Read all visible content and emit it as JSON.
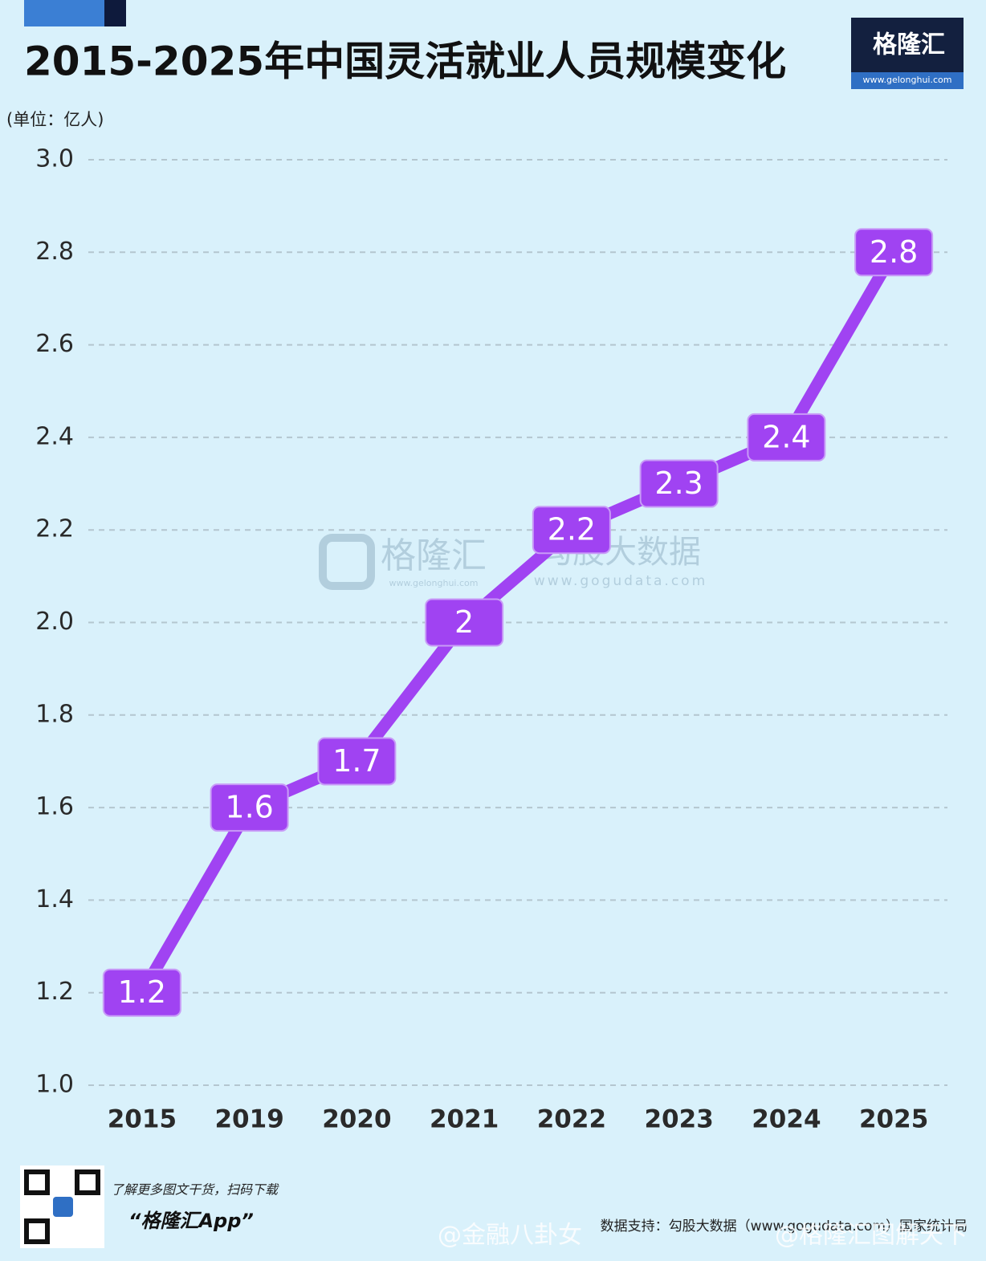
{
  "chart_data": {
    "type": "line",
    "title": "2015-2025年中国灵活就业人员规模变化",
    "unit": "(单位：亿人)",
    "categories": [
      "2015",
      "2019",
      "2020",
      "2021",
      "2022",
      "2023",
      "2024",
      "2025"
    ],
    "values": [
      1.2,
      1.6,
      1.7,
      2,
      2.2,
      2.3,
      2.4,
      2.8
    ],
    "color": "#a043f2",
    "ylim": [
      1,
      3
    ],
    "yticks": [
      {
        "value": 1,
        "label": "1.0"
      },
      1.2,
      1.4,
      1.6,
      1.8,
      {
        "value": 2,
        "label": "2.0"
      },
      2.2,
      2.4,
      2.6,
      2.8,
      {
        "value": 3,
        "label": "3.0"
      }
    ],
    "grid": true
  },
  "branding": {
    "logo": "格隆汇",
    "logo_url": "www.gelonghui.com",
    "watermark": [
      "格隆汇",
      "www.gelonghui.com",
      "勾股大数据",
      "www.gogudata.com"
    ]
  },
  "footer": {
    "promo": "了解更多图文干货，扫码下载",
    "app": "“格隆汇App”",
    "source": "数据支持：勾股大数据（www.gogudata.com）国家统计局",
    "weibo": [
      "@金融八卦女",
      "@格隆汇图解天下"
    ]
  }
}
